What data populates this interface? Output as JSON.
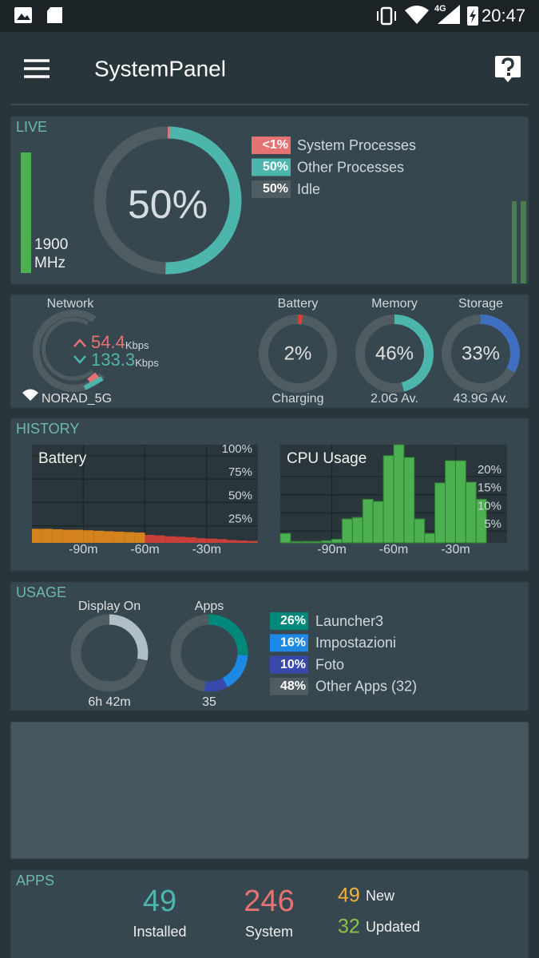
{
  "status_bar": {
    "network": "4G",
    "time": "20:47"
  },
  "app_bar": {
    "title": "SystemPanel"
  },
  "live": {
    "label": "LIVE",
    "cpu_frequency": {
      "value": 1900,
      "unit": "MHz"
    },
    "center": "50%",
    "processes": [
      {
        "name": "System Processes",
        "value": 0.5,
        "label": "<1%",
        "color": "#e57373"
      },
      {
        "name": "Other Processes",
        "value": 50,
        "label": "50%",
        "color": "#4db6ac"
      },
      {
        "name": "Idle",
        "value": 50,
        "label": "50%",
        "color": "#4f5c62"
      }
    ]
  },
  "summary": {
    "network": {
      "label": "Network",
      "upload": {
        "value": 54.4,
        "unit": "Kbps"
      },
      "download": {
        "value": 133.3,
        "unit": "Kbps"
      },
      "ssid": "NORAD_5G"
    },
    "gauges": [
      {
        "title": "Battery",
        "value": 2,
        "label": "2%",
        "caption": "Charging",
        "color": "#e53935"
      },
      {
        "title": "Memory",
        "value": 46,
        "label": "46%",
        "caption": "2.0G Av.",
        "color": "#4db6ac"
      },
      {
        "title": "Storage",
        "value": 33,
        "label": "33%",
        "caption": "43.9G Av.",
        "color": "#3f6fc0"
      }
    ]
  },
  "history": {
    "label": "HISTORY",
    "charts": [
      {
        "type": "bar",
        "title": "Battery",
        "xlim": [
          -115,
          -5
        ],
        "ylim": [
          0,
          105
        ],
        "xticks": [
          {
            "value": -90,
            "label": "-90m"
          },
          {
            "value": -60,
            "label": "-60m"
          },
          {
            "value": -30,
            "label": "-30m"
          }
        ],
        "yticks": [
          {
            "value": 100,
            "label": "100%"
          },
          {
            "value": 75,
            "label": "75%"
          },
          {
            "value": 50,
            "label": "50%"
          },
          {
            "value": 25,
            "label": "25%"
          }
        ],
        "series": [
          {
            "color": "#d4831c",
            "bins": [
              -115,
              -110,
              -105,
              -100,
              -95,
              -90,
              -85,
              -80,
              -75,
              -70,
              -65,
              -60
            ],
            "values": [
              15,
              15,
              14.5,
              14,
              14,
              13.5,
              13,
              12.5,
              12,
              11.5,
              11
            ]
          },
          {
            "color": "#c9403a",
            "bins": [
              -60,
              -55,
              -50,
              -45,
              -40,
              -35,
              -30,
              -25,
              -20,
              -15,
              -10,
              -5
            ],
            "values": [
              8.5,
              8,
              7,
              6.5,
              6,
              5,
              4.5,
              4,
              3,
              2.5,
              2
            ]
          }
        ]
      },
      {
        "type": "bar",
        "title": "CPU Usage",
        "xlim": [
          -115,
          -5
        ],
        "ylim": [
          0,
          27
        ],
        "xticks": [
          {
            "value": -90,
            "label": "-90m"
          },
          {
            "value": -60,
            "label": "-60m"
          },
          {
            "value": -30,
            "label": "-30m"
          }
        ],
        "yticks": [
          {
            "value": 20,
            "label": "20%"
          },
          {
            "value": 15,
            "label": "15%"
          },
          {
            "value": 10,
            "label": "10%"
          },
          {
            "value": 5,
            "label": "5%"
          }
        ],
        "series": [
          {
            "color": "#4caf50",
            "bins": [
              -115,
              -110,
              -105,
              -100,
              -95,
              -90,
              -85,
              -80,
              -75,
              -70,
              -65,
              -60,
              -55,
              -50,
              -45,
              -40,
              -35,
              -30,
              -25,
              -20,
              -15
            ],
            "values": [
              2.6,
              0.4,
              0.4,
              0.4,
              0.6,
              1,
              6.6,
              7,
              12,
              11.4,
              24,
              27,
              23.5,
              6.6,
              2.6,
              16.5,
              22.6,
              22.6,
              16.7,
              12
            ]
          }
        ]
      }
    ]
  },
  "usage": {
    "label": "USAGE",
    "display_on": {
      "title": "Display On",
      "time": "6h 42m",
      "percent": 28
    },
    "apps": {
      "title": "Apps",
      "count": 35,
      "segments": [
        {
          "name": "Launcher3",
          "value": 26,
          "label": "26%",
          "color": "#00897b"
        },
        {
          "name": "Impostazioni",
          "value": 16,
          "label": "16%",
          "color": "#1e88e5"
        },
        {
          "name": "Foto",
          "value": 10,
          "label": "10%",
          "color": "#3949ab"
        },
        {
          "name": "Other Apps (32)",
          "value": 48,
          "label": "48%",
          "color": "#4f5c62"
        }
      ]
    }
  },
  "apps": {
    "label": "APPS",
    "installed": {
      "value": 49,
      "label": "Installed"
    },
    "system": {
      "value": 246,
      "label": "System"
    },
    "new": {
      "value": 49,
      "label": "New"
    },
    "updated": {
      "value": 32,
      "label": "Updated"
    }
  }
}
